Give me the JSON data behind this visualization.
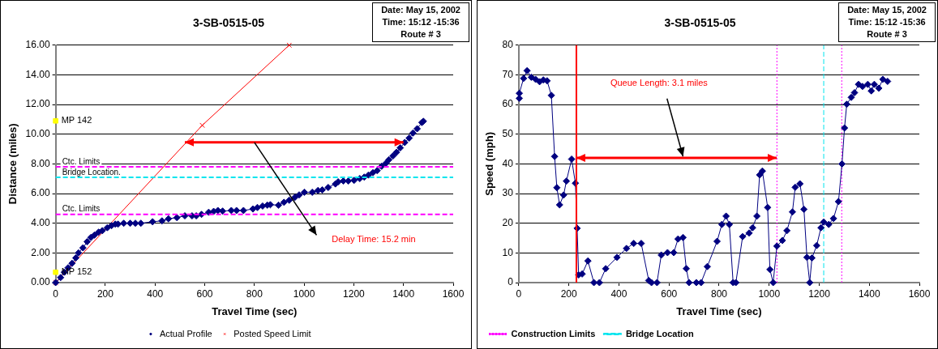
{
  "chart_data": [
    {
      "type": "line",
      "title": "3-SB-0515-05",
      "xlabel": "Travel Time (sec)",
      "ylabel": "Distance (miles)",
      "subtitle": "Date: May 15, 2002\nTime: 15:12 -15:36\nRoute # 3",
      "annotations": [
        "Delay Time: 15.2 min",
        {
          "text": "MP 142",
          "x": 0,
          "y": 10.9
        },
        {
          "text": "MP 152",
          "x": 0,
          "y": 0.7
        }
      ],
      "series": [
        {
          "name": "Actual Profile",
          "color": "#000080",
          "marker": "diamond",
          "x": [
            0,
            20,
            35,
            50,
            66,
            81,
            92,
            110,
            127,
            142,
            156,
            173,
            188,
            208,
            225,
            240,
            251,
            274,
            300,
            321,
            343,
            390,
            428,
            454,
            488,
            520,
            549,
            566,
            587,
            616,
            636,
            653,
            672,
            707,
            728,
            756,
            794,
            812,
            833,
            852,
            864,
            897,
            919,
            940,
            963,
            980,
            1001,
            1033,
            1056,
            1073,
            1097,
            1126,
            1137,
            1158,
            1178,
            1201,
            1224,
            1242,
            1259,
            1277,
            1294,
            1312,
            1329,
            1341,
            1358,
            1372,
            1387,
            1405,
            1423,
            1438,
            1455,
            1474,
            1480
          ],
          "values": [
            0,
            0.34,
            0.7,
            1.0,
            1.3,
            1.66,
            2.0,
            2.34,
            2.76,
            3.04,
            3.2,
            3.4,
            3.5,
            3.7,
            3.84,
            3.94,
            3.94,
            4.0,
            4.0,
            4.0,
            4.0,
            4.1,
            4.16,
            4.3,
            4.38,
            4.5,
            4.5,
            4.5,
            4.6,
            4.74,
            4.8,
            4.86,
            4.82,
            4.86,
            4.86,
            4.86,
            4.96,
            5.06,
            5.16,
            5.22,
            5.25,
            5.22,
            5.41,
            5.55,
            5.75,
            5.91,
            6.09,
            6.09,
            6.21,
            6.25,
            6.41,
            6.65,
            6.79,
            6.85,
            6.85,
            6.89,
            7.01,
            7.11,
            7.25,
            7.41,
            7.55,
            7.84,
            8.04,
            8.28,
            8.54,
            8.78,
            9.08,
            9.44,
            9.74,
            10.08,
            10.37,
            10.79,
            10.87
          ]
        },
        {
          "name": "Posted Speed Limit",
          "color": "#ff0000",
          "marker": "cross",
          "x": [
            0,
            590,
            940
          ],
          "values": [
            0,
            10.6,
            16
          ]
        },
        {
          "type": "scatter",
          "color": "#ffff00",
          "marker": "square",
          "x": [
            0,
            0
          ],
          "values": [
            10.9,
            0.7
          ]
        }
      ],
      "ref_lines": [
        {
          "axis": "y",
          "value": 7.8,
          "label": "Ctc. Limits",
          "color": "#ff00ff",
          "line_style": "dashed"
        },
        {
          "axis": "y",
          "value": 7.1,
          "label": "Bridge Location.",
          "color": "#00e5ee",
          "line_style": "dashed"
        },
        {
          "axis": "y",
          "value": 4.6,
          "label": "Ctc. Limits",
          "color": "#ff00ff",
          "line_style": "dashed"
        }
      ],
      "xlim": [
        0,
        1600
      ],
      "xticks": [
        0,
        200,
        400,
        600,
        800,
        1000,
        1200,
        1400,
        1600
      ],
      "ylim": [
        0,
        16
      ],
      "yticks": [
        {
          "value": 0,
          "label": "0.00"
        },
        {
          "value": 2,
          "label": "2.00"
        },
        {
          "value": 4,
          "label": "4.00"
        },
        {
          "value": 6,
          "label": "6.00"
        },
        {
          "value": 8,
          "label": "8.00"
        },
        {
          "value": 10,
          "label": "10.00"
        },
        {
          "value": 12,
          "label": "12.00"
        },
        {
          "value": 14,
          "label": "14.00"
        },
        {
          "value": 16,
          "label": "16.00"
        }
      ],
      "grid": "y",
      "legend": "bottom"
    },
    {
      "type": "line",
      "title": "3-SB-0515-05",
      "xlabel": "Travel Time (sec)",
      "ylabel": "Speed (mph)",
      "subtitle": "Date: May 15, 2002\nTime: 15:12 -15:36\nRoute # 3",
      "annotations": [
        "Queue Length: 3.1 miles"
      ],
      "series": [
        {
          "color": "#000080",
          "marker": "diamond",
          "x": [
            2,
            2,
            19,
            33,
            50,
            67,
            83,
            98,
            113,
            130,
            143,
            152,
            163,
            179,
            190,
            211,
            226,
            233,
            239,
            253,
            276,
            300,
            322,
            347,
            392,
            430,
            459,
            489,
            519,
            530,
            552,
            569,
            594,
            619,
            636,
            656,
            669,
            680,
            709,
            728,
            753,
            792,
            811,
            828,
            841,
            856,
            867,
            894,
            920,
            934,
            951,
            962,
            973,
            994,
            1003,
            1016,
            1031,
            1053,
            1071,
            1093,
            1104,
            1123,
            1139,
            1151,
            1162,
            1171,
            1190,
            1207,
            1218,
            1238,
            1257,
            1277,
            1291,
            1301,
            1310,
            1328,
            1341,
            1357,
            1373,
            1394,
            1408,
            1420,
            1438,
            1454,
            1473
          ],
          "values": [
            62.1,
            63.8,
            68.8,
            71.4,
            69.2,
            68.5,
            67.7,
            68.3,
            68,
            63.1,
            42.5,
            32,
            26.2,
            29.5,
            34.2,
            41.6,
            33.5,
            18.3,
            2.6,
            2.9,
            7.3,
            0,
            0,
            4.7,
            8.5,
            11.5,
            13.2,
            13.2,
            0.7,
            0,
            0,
            9.3,
            10.1,
            10.1,
            14.7,
            15.2,
            4.7,
            0,
            0,
            0,
            5.4,
            13.9,
            19.6,
            22.4,
            19.6,
            0,
            0,
            15.5,
            16.7,
            18.5,
            22.4,
            36.3,
            37.6,
            25.3,
            4.4,
            0,
            12.3,
            14.2,
            17.5,
            23.8,
            32.1,
            33.3,
            24.7,
            8.5,
            0,
            8.3,
            12.5,
            18.5,
            20.4,
            19.6,
            21.6,
            27.3,
            40,
            52.1,
            60.1,
            62.4,
            64,
            66.8,
            66.1,
            66.8,
            64.6,
            66.8,
            65.5,
            68.5,
            67.8
          ]
        },
        {
          "name": "Construction Limits",
          "color": "#ff00ff",
          "marker": "none",
          "line_style": "dotted",
          "x": [
            1031,
            1031,
            1160,
            1290,
            1290
          ],
          "values": [
            0,
            80,
            null,
            0,
            80
          ]
        },
        {
          "name": "Bridge Location",
          "color": "#00e5ee",
          "marker": "none",
          "line_style": "dashed",
          "x": [
            1218,
            1218
          ],
          "values": [
            0,
            80
          ]
        }
      ],
      "ref_lines": [
        {
          "axis": "x",
          "value": 230,
          "color": "#ff0000"
        }
      ],
      "xlim": [
        0,
        1600
      ],
      "xticks": [
        0,
        200,
        400,
        600,
        800,
        1000,
        1200,
        1400,
        1600
      ],
      "ylim": [
        0,
        80
      ],
      "yticks": [
        0,
        10,
        20,
        30,
        40,
        50,
        60,
        70,
        80
      ],
      "grid": "y",
      "legend": "bottom left"
    }
  ]
}
